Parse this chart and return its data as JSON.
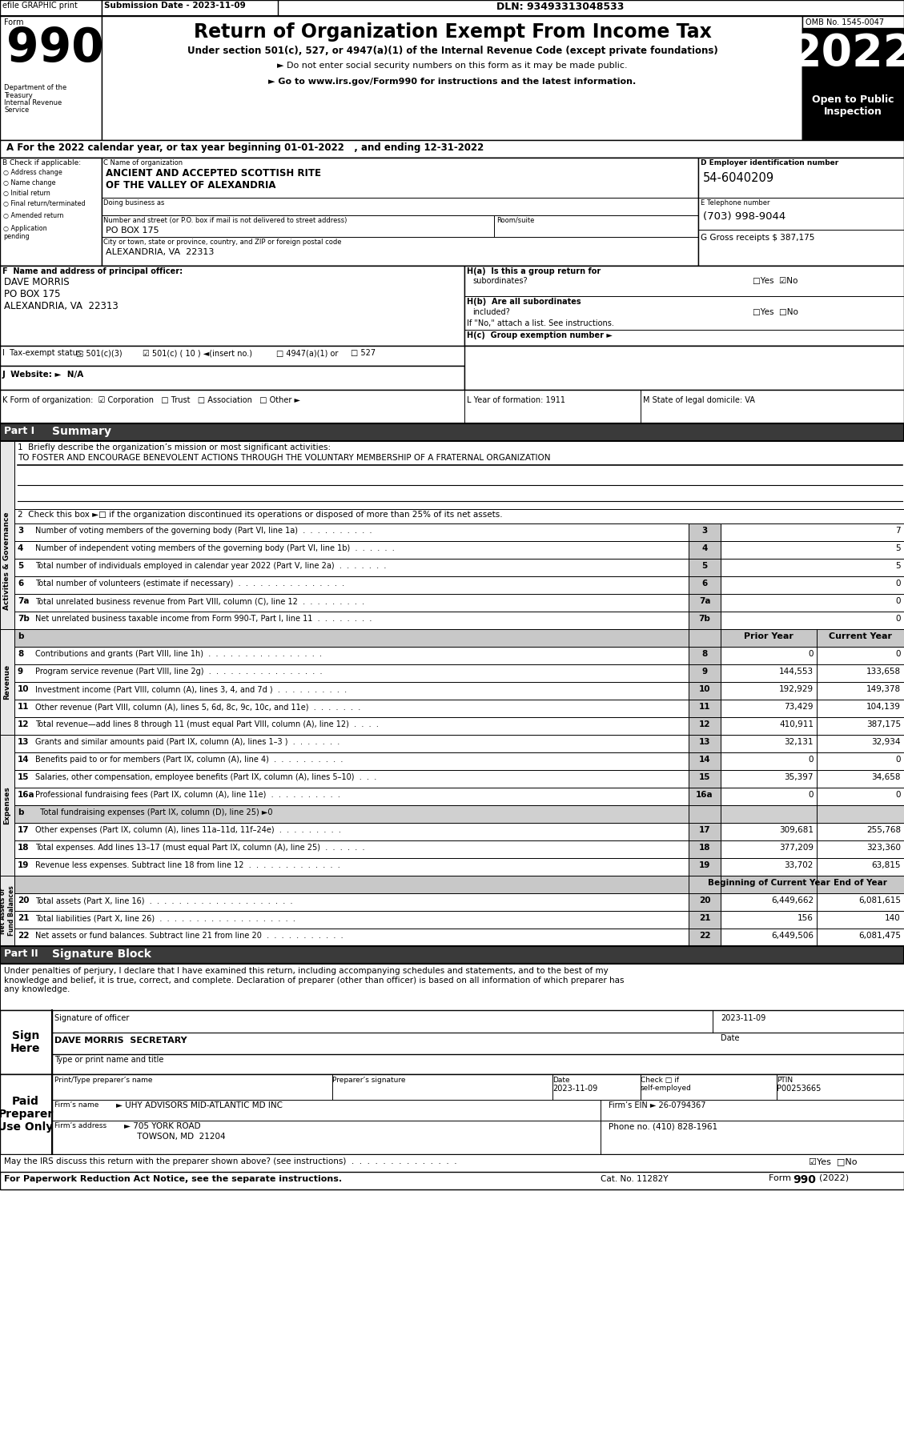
{
  "title_header": "Return of Organization Exempt From Income Tax",
  "form_number": "990",
  "year": "2022",
  "omb": "OMB No. 1545-0047",
  "open_to_public": "Open to Public\nInspection",
  "efile_text": "efile GRAPHIC print",
  "submission_date": "Submission Date - 2023-11-09",
  "dln": "DLN: 93493313048533",
  "under_section": "Under section 501(c), 527, or 4947(a)(1) of the Internal Revenue Code (except private foundations)",
  "do_not_enter": "► Do not enter social security numbers on this form as it may be made public.",
  "go_to": "► Go to www.irs.gov/Form990 for instructions and the latest information.",
  "dept": "Department of the\nTreasury\nInternal Revenue\nService",
  "line_a": "A For the 2022 calendar year, or tax year beginning 01-01-2022   , and ending 12-31-2022",
  "checkboxes_b": [
    "Address change",
    "Name change",
    "Initial return",
    "Final return/terminated",
    "Amended return",
    "Application\npending"
  ],
  "org_name": "ANCIENT AND ACCEPTED SCOTTISH RITE\nOF THE VALLEY OF ALEXANDRIA",
  "street_label": "Number and street (or P.O. box if mail is not delivered to street address)",
  "room_label": "Room/suite",
  "street": "PO BOX 175",
  "city_label": "City or town, state or province, country, and ZIP or foreign postal code",
  "city": "ALEXANDRIA, VA  22313",
  "ein": "54-6040209",
  "phone": "(703) 998-9044",
  "gross": "387,175",
  "principal": "DAVE MORRIS\nPO BOX 175\nALEXANDRIA, VA  22313",
  "hb_note": "If \"No,\" attach a list. See instructions.",
  "mission": "TO FOSTER AND ENCOURAGE BENEVOLENT ACTIONS THROUGH THE VOLUNTARY MEMBERSHIP OF A FRATERNAL ORGANIZATION",
  "check2": "2  Check this box ►□ if the organization discontinued its operations or disposed of more than 25% of its net assets.",
  "summary_rows": [
    {
      "num": "3",
      "label": "Number of voting members of the governing body (Part VI, line 1a)  .  .  .  .  .  .  .  .  .  .",
      "current": "7"
    },
    {
      "num": "4",
      "label": "Number of independent voting members of the governing body (Part VI, line 1b)  .  .  .  .  .  .",
      "current": "5"
    },
    {
      "num": "5",
      "label": "Total number of individuals employed in calendar year 2022 (Part V, line 2a)  .  .  .  .  .  .  .",
      "current": "5"
    },
    {
      "num": "6",
      "label": "Total number of volunteers (estimate if necessary)  .  .  .  .  .  .  .  .  .  .  .  .  .  .  .",
      "current": "0"
    },
    {
      "num": "7a",
      "label": "Total unrelated business revenue from Part VIII, column (C), line 12  .  .  .  .  .  .  .  .  .",
      "current": "0"
    },
    {
      "num": "7b",
      "label": "Net unrelated business taxable income from Form 990-T, Part I, line 11  .  .  .  .  .  .  .  .",
      "current": "0"
    }
  ],
  "revenue_rows": [
    {
      "num": "8",
      "label": "Contributions and grants (Part VIII, line 1h)  .  .  .  .  .  .  .  .  .  .  .  .  .  .  .  .",
      "prior": "0",
      "current": "0"
    },
    {
      "num": "9",
      "label": "Program service revenue (Part VIII, line 2g)  .  .  .  .  .  .  .  .  .  .  .  .  .  .  .  .",
      "prior": "144,553",
      "current": "133,658"
    },
    {
      "num": "10",
      "label": "Investment income (Part VIII, column (A), lines 3, 4, and 7d )  .  .  .  .  .  .  .  .  .  .",
      "prior": "192,929",
      "current": "149,378"
    },
    {
      "num": "11",
      "label": "Other revenue (Part VIII, column (A), lines 5, 6d, 8c, 9c, 10c, and 11e)  .  .  .  .  .  .  .",
      "prior": "73,429",
      "current": "104,139"
    },
    {
      "num": "12",
      "label": "Total revenue—add lines 8 through 11 (must equal Part VIII, column (A), line 12)  .  .  .  .",
      "prior": "410,911",
      "current": "387,175"
    }
  ],
  "expense_rows": [
    {
      "num": "13",
      "label": "Grants and similar amounts paid (Part IX, column (A), lines 1–3 )  .  .  .  .  .  .  .",
      "prior": "32,131",
      "current": "32,934",
      "has_cols": true
    },
    {
      "num": "14",
      "label": "Benefits paid to or for members (Part IX, column (A), line 4)  .  .  .  .  .  .  .  .  .  .",
      "prior": "0",
      "current": "0",
      "has_cols": true
    },
    {
      "num": "15",
      "label": "Salaries, other compensation, employee benefits (Part IX, column (A), lines 5–10)  .  .  .",
      "prior": "35,397",
      "current": "34,658",
      "has_cols": true
    },
    {
      "num": "16a",
      "label": "Professional fundraising fees (Part IX, column (A), line 11e)  .  .  .  .  .  .  .  .  .  .",
      "prior": "0",
      "current": "0",
      "has_cols": true
    },
    {
      "num": "b",
      "label": "  Total fundraising expenses (Part IX, column (D), line 25) ►0",
      "prior": "",
      "current": "",
      "has_cols": false
    },
    {
      "num": "17",
      "label": "Other expenses (Part IX, column (A), lines 11a–11d, 11f–24e)  .  .  .  .  .  .  .  .  .",
      "prior": "309,681",
      "current": "255,768",
      "has_cols": true
    },
    {
      "num": "18",
      "label": "Total expenses. Add lines 13–17 (must equal Part IX, column (A), line 25)  .  .  .  .  .  .",
      "prior": "377,209",
      "current": "323,360",
      "has_cols": true
    },
    {
      "num": "19",
      "label": "Revenue less expenses. Subtract line 18 from line 12  .  .  .  .  .  .  .  .  .  .  .  .  .",
      "prior": "33,702",
      "current": "63,815",
      "has_cols": true
    }
  ],
  "netasset_rows": [
    {
      "num": "20",
      "label": "Total assets (Part X, line 16)  .  .  .  .  .  .  .  .  .  .  .  .  .  .  .  .  .  .  .  .",
      "prior": "6,449,662",
      "current": "6,081,615"
    },
    {
      "num": "21",
      "label": "Total liabilities (Part X, line 26)  .  .  .  .  .  .  .  .  .  .  .  .  .  .  .  .  .  .  .",
      "prior": "156",
      "current": "140"
    },
    {
      "num": "22",
      "label": "Net assets or fund balances. Subtract line 21 from line 20  .  .  .  .  .  .  .  .  .  .  .",
      "prior": "6,449,506",
      "current": "6,081,475"
    }
  ],
  "perjury_text": "Under penalties of perjury, I declare that I have examined this return, including accompanying schedules and statements, and to the best of my\nknowledge and belief, it is true, correct, and complete. Declaration of preparer (other than officer) is based on all information of which preparer has\nany knowledge.",
  "sig_name": "DAVE MORRIS  SECRETARY",
  "preparer_ptin": "P00253665",
  "preparer_date": "2023-11-09",
  "firm_name": "UHY ADVISORS MID-ATLANTIC MD INC",
  "firm_ein": "26-0794367",
  "firm_address": "705 YORK ROAD",
  "firm_city": "TOWSON, MD  21204",
  "firm_phone": "(410) 828-1961",
  "cat_no": "Cat. No. 11282Y"
}
